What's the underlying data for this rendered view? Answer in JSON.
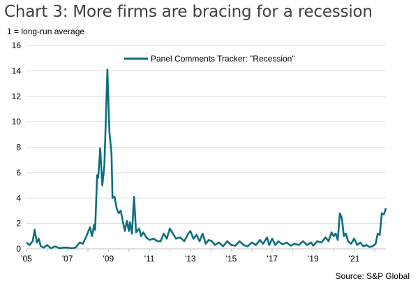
{
  "title": "Chart 3: More firms are bracing for a recession",
  "unit_note": "1 = long-run average",
  "source": "Source: S&P Global",
  "colors": {
    "series": "#0E6E7E",
    "grid": "#d9d9d9"
  },
  "chart_data": {
    "type": "line",
    "title": "Chart 3: More firms are bracing for a recession",
    "ylabel": "1 = long-run average",
    "ylim": [
      0,
      16
    ],
    "yticks": [
      0,
      2,
      4,
      6,
      8,
      10,
      12,
      14,
      16
    ],
    "xlim": [
      2005.0,
      2022.55
    ],
    "xticks": [
      {
        "x": 2005,
        "label": "'05"
      },
      {
        "x": 2007,
        "label": "'07"
      },
      {
        "x": 2009,
        "label": "'09"
      },
      {
        "x": 2011,
        "label": "'11"
      },
      {
        "x": 2013,
        "label": "'13"
      },
      {
        "x": 2015,
        "label": "'15"
      },
      {
        "x": 2017,
        "label": "'17"
      },
      {
        "x": 2019,
        "label": "'19"
      },
      {
        "x": 2021,
        "label": "'21"
      }
    ],
    "grid": "horizontal",
    "legend_position": "top",
    "series": [
      {
        "name": "Panel Comments Tracker: \"Recession\"",
        "points": [
          [
            2005.0,
            0.5
          ],
          [
            2005.15,
            0.3
          ],
          [
            2005.3,
            0.6
          ],
          [
            2005.4,
            1.5
          ],
          [
            2005.5,
            0.5
          ],
          [
            2005.6,
            0.8
          ],
          [
            2005.7,
            0.2
          ],
          [
            2005.85,
            0.1
          ],
          [
            2006.0,
            0.3
          ],
          [
            2006.2,
            0.05
          ],
          [
            2006.4,
            0.2
          ],
          [
            2006.6,
            0.05
          ],
          [
            2006.8,
            0.1
          ],
          [
            2007.0,
            0.1
          ],
          [
            2007.2,
            0.05
          ],
          [
            2007.4,
            0.1
          ],
          [
            2007.6,
            0.5
          ],
          [
            2007.75,
            0.4
          ],
          [
            2007.9,
            0.9
          ],
          [
            2008.0,
            1.3
          ],
          [
            2008.1,
            1.7
          ],
          [
            2008.2,
            1.0
          ],
          [
            2008.3,
            1.9
          ],
          [
            2008.35,
            1.5
          ],
          [
            2008.45,
            5.8
          ],
          [
            2008.5,
            5.6
          ],
          [
            2008.6,
            7.9
          ],
          [
            2008.7,
            5.0
          ],
          [
            2008.8,
            6.5
          ],
          [
            2008.85,
            9.0
          ],
          [
            2008.95,
            14.1
          ],
          [
            2009.05,
            9.2
          ],
          [
            2009.15,
            7.5
          ],
          [
            2009.2,
            4.0
          ],
          [
            2009.3,
            4.1
          ],
          [
            2009.4,
            3.2
          ],
          [
            2009.5,
            2.8
          ],
          [
            2009.6,
            3.0
          ],
          [
            2009.7,
            2.2
          ],
          [
            2009.8,
            1.4
          ],
          [
            2009.9,
            2.2
          ],
          [
            2010.0,
            1.4
          ],
          [
            2010.05,
            2.1
          ],
          [
            2010.15,
            1.2
          ],
          [
            2010.25,
            4.1
          ],
          [
            2010.35,
            1.3
          ],
          [
            2010.5,
            1.6
          ],
          [
            2010.6,
            1.0
          ],
          [
            2010.7,
            1.3
          ],
          [
            2010.85,
            0.9
          ],
          [
            2011.0,
            0.7
          ],
          [
            2011.2,
            0.8
          ],
          [
            2011.4,
            0.6
          ],
          [
            2011.55,
            0.6
          ],
          [
            2011.7,
            1.2
          ],
          [
            2011.85,
            0.8
          ],
          [
            2012.0,
            1.6
          ],
          [
            2012.15,
            1.2
          ],
          [
            2012.3,
            0.8
          ],
          [
            2012.5,
            0.9
          ],
          [
            2012.7,
            0.6
          ],
          [
            2012.9,
            1.2
          ],
          [
            2013.0,
            1.4
          ],
          [
            2013.15,
            0.8
          ],
          [
            2013.3,
            1.1
          ],
          [
            2013.45,
            0.6
          ],
          [
            2013.6,
            1.2
          ],
          [
            2013.75,
            0.4
          ],
          [
            2013.9,
            0.7
          ],
          [
            2014.05,
            0.6
          ],
          [
            2014.2,
            0.3
          ],
          [
            2014.4,
            0.5
          ],
          [
            2014.6,
            0.2
          ],
          [
            2014.8,
            0.6
          ],
          [
            2015.0,
            0.3
          ],
          [
            2015.2,
            0.25
          ],
          [
            2015.4,
            0.6
          ],
          [
            2015.6,
            0.3
          ],
          [
            2015.8,
            0.2
          ],
          [
            2016.0,
            0.5
          ],
          [
            2016.2,
            0.3
          ],
          [
            2016.4,
            0.7
          ],
          [
            2016.55,
            0.4
          ],
          [
            2016.75,
            0.9
          ],
          [
            2016.85,
            0.3
          ],
          [
            2017.0,
            0.8
          ],
          [
            2017.15,
            0.3
          ],
          [
            2017.3,
            0.6
          ],
          [
            2017.5,
            0.35
          ],
          [
            2017.7,
            0.5
          ],
          [
            2017.9,
            0.25
          ],
          [
            2018.1,
            0.4
          ],
          [
            2018.3,
            0.3
          ],
          [
            2018.5,
            0.6
          ],
          [
            2018.7,
            0.3
          ],
          [
            2018.9,
            0.5
          ],
          [
            2019.0,
            0.25
          ],
          [
            2019.2,
            0.6
          ],
          [
            2019.4,
            0.5
          ],
          [
            2019.6,
            0.9
          ],
          [
            2019.75,
            0.6
          ],
          [
            2019.9,
            1.3
          ],
          [
            2020.0,
            1.0
          ],
          [
            2020.1,
            1.2
          ],
          [
            2020.2,
            0.7
          ],
          [
            2020.3,
            2.8
          ],
          [
            2020.4,
            2.4
          ],
          [
            2020.5,
            1.0
          ],
          [
            2020.6,
            1.2
          ],
          [
            2020.7,
            0.6
          ],
          [
            2020.85,
            0.4
          ],
          [
            2021.0,
            0.8
          ],
          [
            2021.15,
            0.3
          ],
          [
            2021.3,
            0.5
          ],
          [
            2021.45,
            0.2
          ],
          [
            2021.6,
            0.3
          ],
          [
            2021.75,
            0.15
          ],
          [
            2021.9,
            0.2
          ],
          [
            2022.05,
            0.4
          ],
          [
            2022.15,
            1.2
          ],
          [
            2022.25,
            1.1
          ],
          [
            2022.35,
            2.8
          ],
          [
            2022.45,
            2.7
          ],
          [
            2022.55,
            3.2
          ]
        ]
      }
    ]
  }
}
